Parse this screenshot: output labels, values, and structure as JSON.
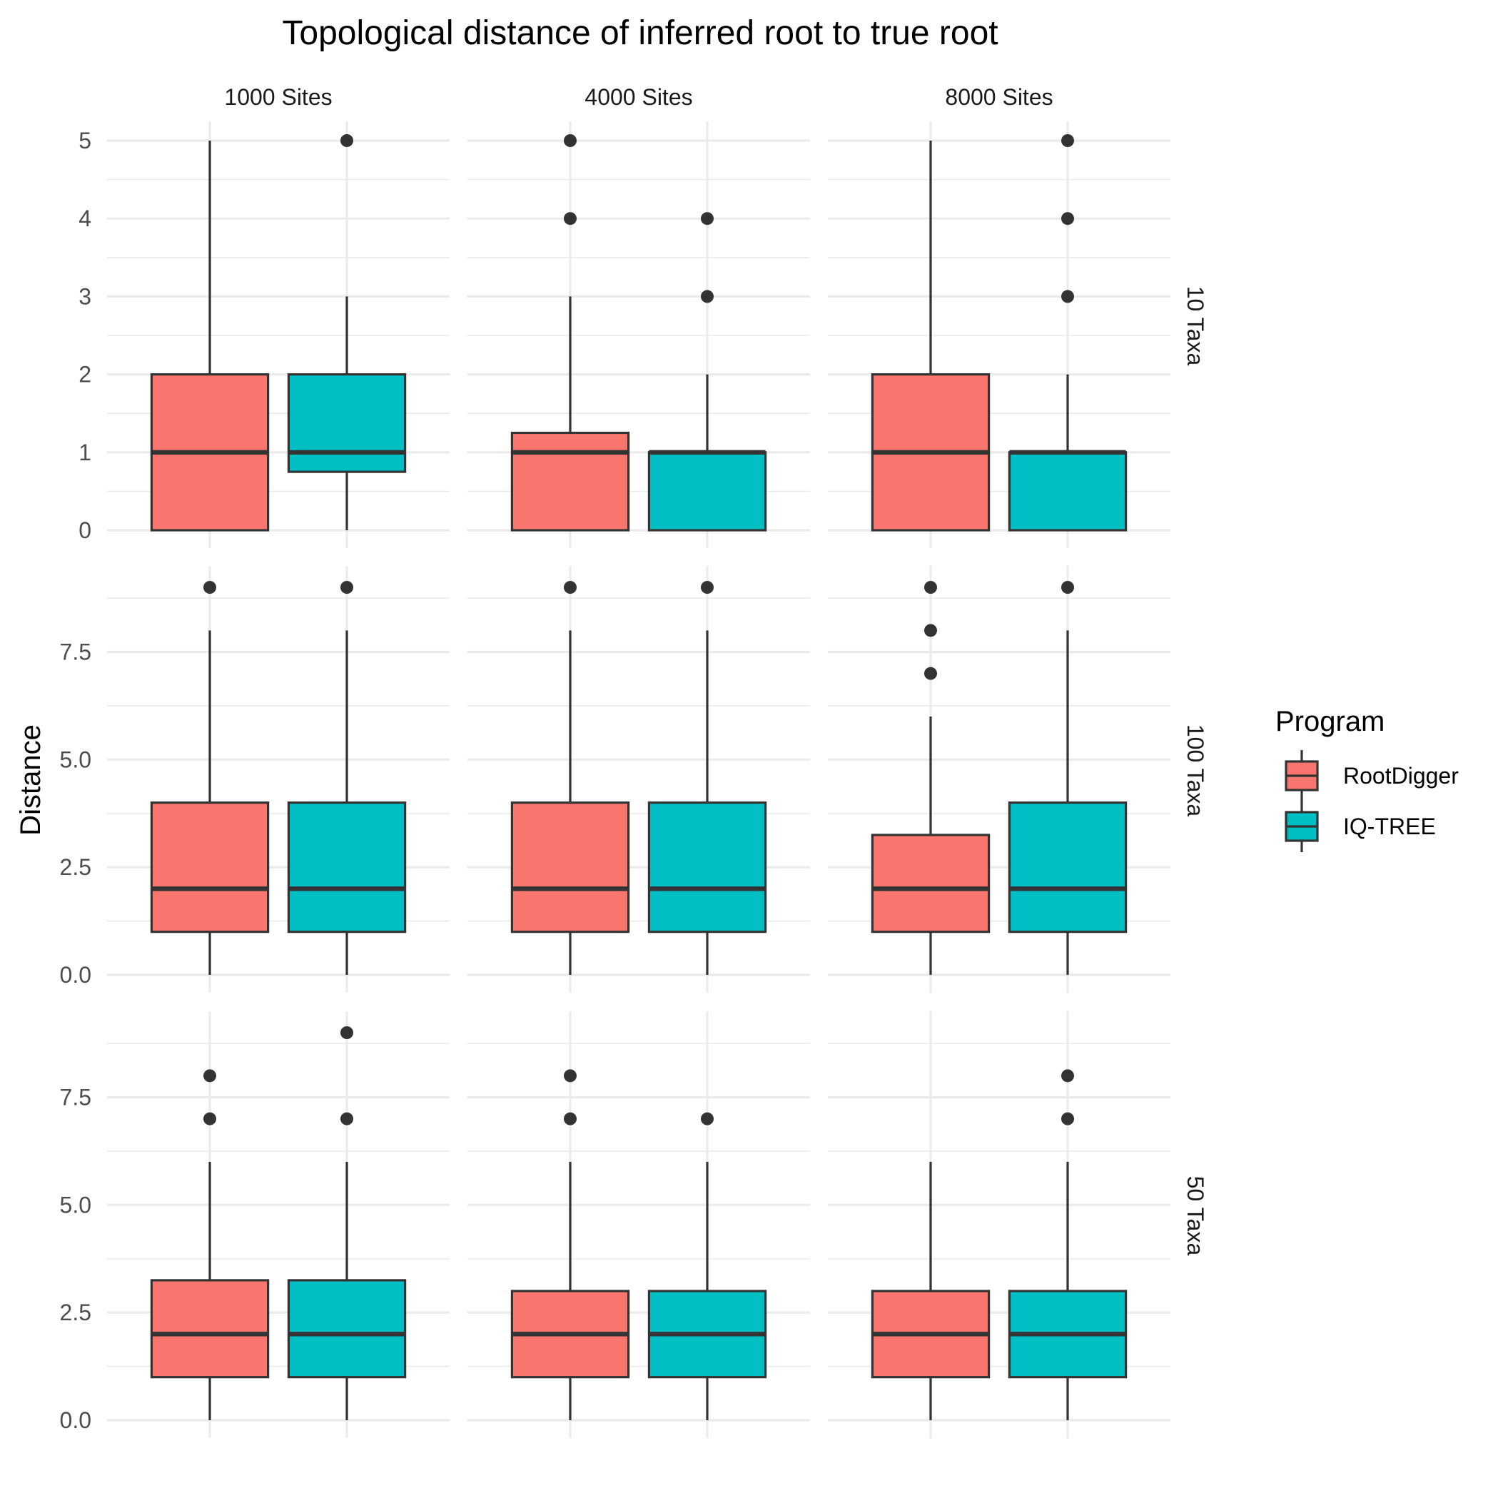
{
  "chart_data": {
    "type": "boxplot",
    "title": "Topological distance of inferred root to true root",
    "xlabel": "",
    "ylabel": "Distance",
    "grid": true,
    "x_ticks_shown": false,
    "legend": {
      "title": "Program",
      "placement": "right",
      "entries": [
        {
          "label": "RootDigger",
          "color": "#F8766D"
        },
        {
          "label": "IQ-TREE",
          "color": "#00BFC4"
        }
      ]
    },
    "col_facets": [
      "1000 Sites",
      "4000 Sites",
      "8000 Sites"
    ],
    "row_facets": [
      {
        "label": "10 Taxa",
        "ylim": [
          0,
          5
        ],
        "ticks": [
          0,
          1,
          2,
          3,
          4,
          5
        ],
        "tick_labels": [
          "0",
          "1",
          "2",
          "3",
          "4",
          "5"
        ]
      },
      {
        "label": "100 Taxa",
        "ylim": [
          0,
          9
        ],
        "ticks": [
          0,
          2.5,
          5,
          7.5
        ],
        "tick_labels": [
          "0.0",
          "2.5",
          "5.0",
          "7.5"
        ]
      },
      {
        "label": "50 Taxa",
        "ylim": [
          0,
          9
        ],
        "ticks": [
          0,
          2.5,
          5,
          7.5
        ],
        "tick_labels": [
          "0.0",
          "2.5",
          "5.0",
          "7.5"
        ]
      }
    ],
    "panels": [
      {
        "row": 0,
        "col": 0,
        "boxes": [
          {
            "program": "RootDigger",
            "min": 0,
            "q1": 0,
            "median": 1,
            "q3": 2,
            "max": 5,
            "outliers": []
          },
          {
            "program": "IQ-TREE",
            "min": 0,
            "q1": 0.75,
            "median": 1,
            "q3": 2,
            "max": 3,
            "outliers": [
              5
            ]
          }
        ]
      },
      {
        "row": 0,
        "col": 1,
        "boxes": [
          {
            "program": "RootDigger",
            "min": 0,
            "q1": 0,
            "median": 1,
            "q3": 1.25,
            "max": 3,
            "outliers": [
              4,
              5
            ]
          },
          {
            "program": "IQ-TREE",
            "min": 0,
            "q1": 0,
            "median": 1,
            "q3": 1,
            "max": 2,
            "outliers": [
              3,
              4
            ]
          }
        ]
      },
      {
        "row": 0,
        "col": 2,
        "boxes": [
          {
            "program": "RootDigger",
            "min": 0,
            "q1": 0,
            "median": 1,
            "q3": 2,
            "max": 5,
            "outliers": []
          },
          {
            "program": "IQ-TREE",
            "min": 0,
            "q1": 0,
            "median": 1,
            "q3": 1,
            "max": 2,
            "outliers": [
              3,
              4,
              5
            ]
          }
        ]
      },
      {
        "row": 1,
        "col": 0,
        "boxes": [
          {
            "program": "RootDigger",
            "min": 0,
            "q1": 1,
            "median": 2,
            "q3": 4,
            "max": 8,
            "outliers": [
              9
            ]
          },
          {
            "program": "IQ-TREE",
            "min": 0,
            "q1": 1,
            "median": 2,
            "q3": 4,
            "max": 8,
            "outliers": [
              9
            ]
          }
        ]
      },
      {
        "row": 1,
        "col": 1,
        "boxes": [
          {
            "program": "RootDigger",
            "min": 0,
            "q1": 1,
            "median": 2,
            "q3": 4,
            "max": 8,
            "outliers": [
              9
            ]
          },
          {
            "program": "IQ-TREE",
            "min": 0,
            "q1": 1,
            "median": 2,
            "q3": 4,
            "max": 8,
            "outliers": [
              9
            ]
          }
        ]
      },
      {
        "row": 1,
        "col": 2,
        "boxes": [
          {
            "program": "RootDigger",
            "min": 0,
            "q1": 1,
            "median": 2,
            "q3": 3.25,
            "max": 6,
            "outliers": [
              7,
              8,
              9
            ]
          },
          {
            "program": "IQ-TREE",
            "min": 0,
            "q1": 1,
            "median": 2,
            "q3": 4,
            "max": 8,
            "outliers": [
              9
            ]
          }
        ]
      },
      {
        "row": 2,
        "col": 0,
        "boxes": [
          {
            "program": "RootDigger",
            "min": 0,
            "q1": 1,
            "median": 2,
            "q3": 3.25,
            "max": 6,
            "outliers": [
              7,
              8
            ]
          },
          {
            "program": "IQ-TREE",
            "min": 0,
            "q1": 1,
            "median": 2,
            "q3": 3.25,
            "max": 6,
            "outliers": [
              7,
              9
            ]
          }
        ]
      },
      {
        "row": 2,
        "col": 1,
        "boxes": [
          {
            "program": "RootDigger",
            "min": 0,
            "q1": 1,
            "median": 2,
            "q3": 3,
            "max": 6,
            "outliers": [
              7,
              8
            ]
          },
          {
            "program": "IQ-TREE",
            "min": 0,
            "q1": 1,
            "median": 2,
            "q3": 3,
            "max": 6,
            "outliers": [
              7
            ]
          }
        ]
      },
      {
        "row": 2,
        "col": 2,
        "boxes": [
          {
            "program": "RootDigger",
            "min": 0,
            "q1": 1,
            "median": 2,
            "q3": 3,
            "max": 6,
            "outliers": []
          },
          {
            "program": "IQ-TREE",
            "min": 0,
            "q1": 1,
            "median": 2,
            "q3": 3,
            "max": 6,
            "outliers": [
              7,
              8
            ]
          }
        ]
      }
    ]
  }
}
